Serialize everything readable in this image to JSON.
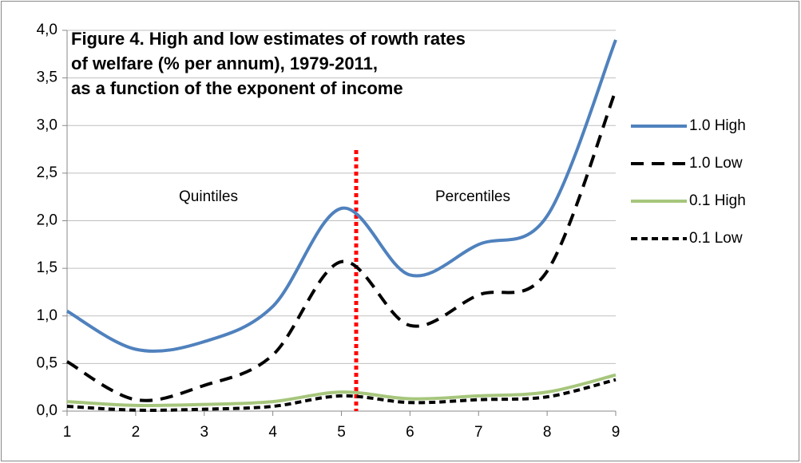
{
  "chart_data": {
    "type": "line",
    "title": [
      "Figure 4. High and low estimates of rowth rates",
      "of welfare (% per annum), 1979-2011,",
      "as a function of the exponent of income"
    ],
    "annotations": [
      "Quintiles",
      "Percentiles"
    ],
    "x": [
      1,
      2,
      3,
      4,
      5,
      6,
      7,
      8,
      9
    ],
    "xlim": [
      1,
      9
    ],
    "xticks": [
      1,
      2,
      3,
      4,
      5,
      6,
      7,
      8,
      9
    ],
    "ylim": [
      0,
      4
    ],
    "yticks": [
      {
        "value": 0,
        "label": "0,0"
      },
      {
        "value": 0.5,
        "label": "0,5"
      },
      {
        "value": 1,
        "label": "1,0"
      },
      {
        "value": 1.5,
        "label": "1,5"
      },
      {
        "value": 2,
        "label": "2,0"
      },
      {
        "value": 2.5,
        "label": "2,5"
      },
      {
        "value": 3,
        "label": "3,0"
      },
      {
        "value": 3.5,
        "label": "3,5"
      },
      {
        "value": 4,
        "label": "4,0"
      }
    ],
    "grid": true,
    "legend": "right",
    "smooth": true,
    "series": [
      {
        "name": "1.0 High",
        "color": "#4f81bd",
        "dash": "solid",
        "values": [
          1.05,
          0.65,
          0.73,
          1.1,
          2.13,
          1.43,
          1.75,
          2.05,
          3.9
        ]
      },
      {
        "name": "1.0 Low",
        "color": "#000000",
        "dash": "long",
        "values": [
          0.52,
          0.12,
          0.27,
          0.59,
          1.57,
          0.9,
          1.22,
          1.47,
          3.37
        ]
      },
      {
        "name": "0.1 High",
        "color": "#a6c67c",
        "dash": "solid",
        "values": [
          0.1,
          0.06,
          0.07,
          0.1,
          0.2,
          0.13,
          0.16,
          0.2,
          0.38
        ]
      },
      {
        "name": "0.1 Low",
        "color": "#000000",
        "dash": "short",
        "values": [
          0.05,
          0.01,
          0.02,
          0.05,
          0.16,
          0.09,
          0.12,
          0.15,
          0.33
        ]
      }
    ]
  }
}
